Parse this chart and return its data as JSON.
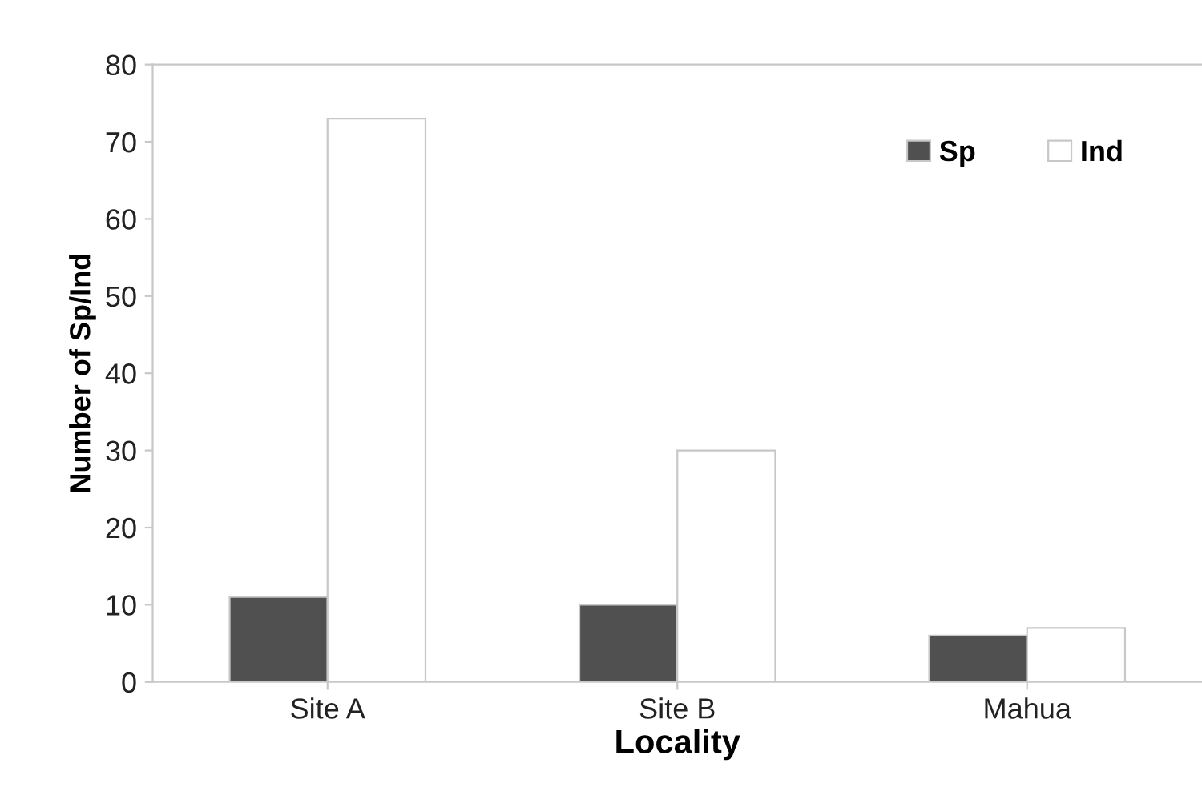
{
  "chart_data": {
    "type": "bar",
    "xlabel": "Locality",
    "ylabel": "Number of Sp/Ind",
    "categories": [
      "Site A",
      "Site B",
      "Mahua"
    ],
    "series": [
      {
        "name": "Sp",
        "color": "#505050",
        "values": [
          11,
          10,
          6
        ]
      },
      {
        "name": "Ind",
        "color": "#ffffff",
        "values": [
          73,
          30,
          7
        ]
      }
    ],
    "ylim": [
      0,
      80
    ],
    "yticks": [
      0,
      10,
      20,
      30,
      40,
      50,
      60,
      70,
      80
    ],
    "grid": false,
    "legend": "top right"
  }
}
